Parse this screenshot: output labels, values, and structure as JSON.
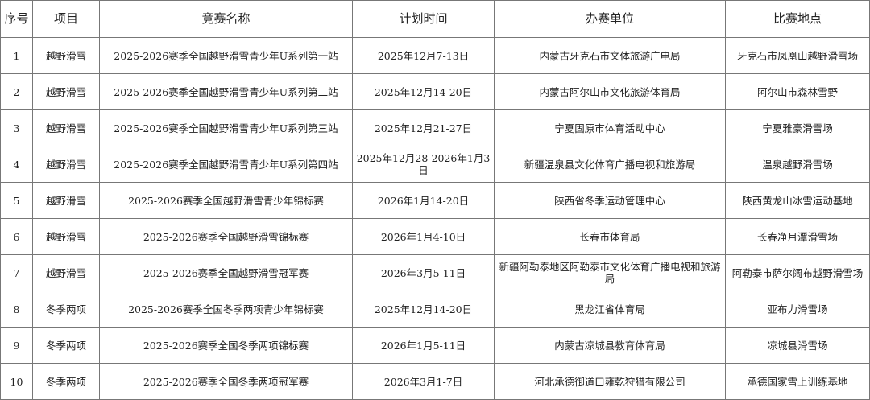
{
  "headers": [
    "序号",
    "项目",
    "竞赛名称",
    "计划时间",
    "办赛单位",
    "比赛地点"
  ],
  "rows": [
    [
      "1",
      "越野滑雪",
      "2025-2026赛季全国越野滑雪青少年U系列第一站",
      "2025年12月7-13日",
      "内蒙古牙克石市文体旅游广电局",
      "牙克石市凤凰山越野滑雪场"
    ],
    [
      "2",
      "越野滑雪",
      "2025-2026赛季全国越野滑雪青少年U系列第二站",
      "2025年12月14-20日",
      "内蒙古阿尔山市文化旅游体育局",
      "阿尔山市森林雪野"
    ],
    [
      "3",
      "越野滑雪",
      "2025-2026赛季全国越野滑雪青少年U系列第三站",
      "2025年12月21-27日",
      "宁夏固原市体育活动中心",
      "宁夏雅豪滑雪场"
    ],
    [
      "4",
      "越野滑雪",
      "2025-2026赛季全国越野滑雪青少年U系列第四站",
      "2025年12月28-2026年1月3日",
      "新疆温泉县文化体育广播电视和旅游局",
      "温泉越野滑雪场"
    ],
    [
      "5",
      "越野滑雪",
      "2025-2026赛季全国越野滑雪青少年锦标赛",
      "2026年1月14-20日",
      "陕西省冬季运动管理中心",
      "陕西黄龙山冰雪运动基地"
    ],
    [
      "6",
      "越野滑雪",
      "2025-2026赛季全国越野滑雪锦标赛",
      "2026年1月4-10日",
      "长春市体育局",
      "长春净月潭滑雪场"
    ],
    [
      "7",
      "越野滑雪",
      "2025-2026赛季全国越野滑雪冠军赛",
      "2026年3月5-11日",
      "新疆阿勒泰地区阿勒泰市文化体育广播电视和旅游局",
      "阿勒泰市萨尔阔布越野滑雪场"
    ],
    [
      "8",
      "冬季两项",
      "2025-2026赛季全国冬季两项青少年锦标赛",
      "2025年12月14-20日",
      "黑龙江省体育局",
      "亚布力滑雪场"
    ],
    [
      "9",
      "冬季两项",
      "2025-2026赛季全国冬季两项锦标赛",
      "2026年1月5-11日",
      "内蒙古凉城县教育体育局",
      "凉城县滑雪场"
    ],
    [
      "10",
      "冬季两项",
      "2025-2026赛季全国冬季两项冠军赛",
      "2026年3月1-7日",
      "河北承德御道口雍乾狩猎有限公司",
      "承德国家雪上训练基地"
    ]
  ]
}
